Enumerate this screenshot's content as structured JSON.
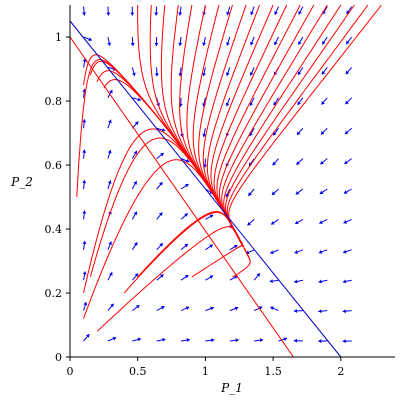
{
  "chart_data": {
    "type": "line",
    "subtype": "phase-plane direction field with trajectories and nullclines",
    "title": "",
    "xlabel": "P_1",
    "ylabel": "P_2",
    "xlim": [
      0,
      2.4
    ],
    "ylim": [
      0,
      1.1
    ],
    "grid": false,
    "legend": "none",
    "x_ticks": [
      0,
      0.5,
      1,
      1.5,
      2
    ],
    "x_tick_labels": [
      "0",
      "0.5",
      "1",
      "1.5",
      "2"
    ],
    "y_ticks": [
      0,
      0.2,
      0.4,
      0.6,
      0.8,
      1
    ],
    "y_tick_labels": [
      "0",
      "0.2",
      "0.4",
      "0.6",
      "0.8",
      "1"
    ],
    "colors": {
      "field": "#0000ee",
      "trajectory": "#ff0000",
      "nullcline_blue": "#0000cc",
      "nullcline_red": "#ff0000",
      "axis": "#000000"
    },
    "nullclines": [
      {
        "color": "blue",
        "x": [
          0,
          2
        ],
        "y": [
          1.05,
          0
        ]
      },
      {
        "color": "red",
        "x": [
          0,
          1.65
        ],
        "y": [
          1.0,
          0
        ]
      }
    ],
    "equilibrium": {
      "x": 1.05,
      "y": 0.4
    },
    "trajectory_starts": [
      [
        0.1,
        0.85
      ],
      [
        0.15,
        0.88
      ],
      [
        0.2,
        0.86
      ],
      [
        0.25,
        0.84
      ],
      [
        0.1,
        0.2
      ],
      [
        0.15,
        0.25
      ],
      [
        0.1,
        0.12
      ],
      [
        0.2,
        0.08
      ],
      [
        0.05,
        0.5
      ],
      [
        0.4,
        0.2
      ],
      [
        0.5,
        0.25
      ],
      [
        0.9,
        0.25
      ],
      [
        1.2,
        0.25
      ],
      [
        0.5,
        1.1
      ],
      [
        0.6,
        1.1
      ],
      [
        0.7,
        1.1
      ],
      [
        0.8,
        1.1
      ],
      [
        0.9,
        1.1
      ],
      [
        1.0,
        1.1
      ],
      [
        1.1,
        1.1
      ],
      [
        1.2,
        1.1
      ],
      [
        1.3,
        1.1
      ],
      [
        1.4,
        1.1
      ],
      [
        1.5,
        1.1
      ],
      [
        1.6,
        1.1
      ],
      [
        1.7,
        1.1
      ],
      [
        1.8,
        1.1
      ],
      [
        1.9,
        1.1
      ],
      [
        2.0,
        1.1
      ],
      [
        2.1,
        1.1
      ],
      [
        2.2,
        1.1
      ],
      [
        2.3,
        1.1
      ]
    ]
  }
}
